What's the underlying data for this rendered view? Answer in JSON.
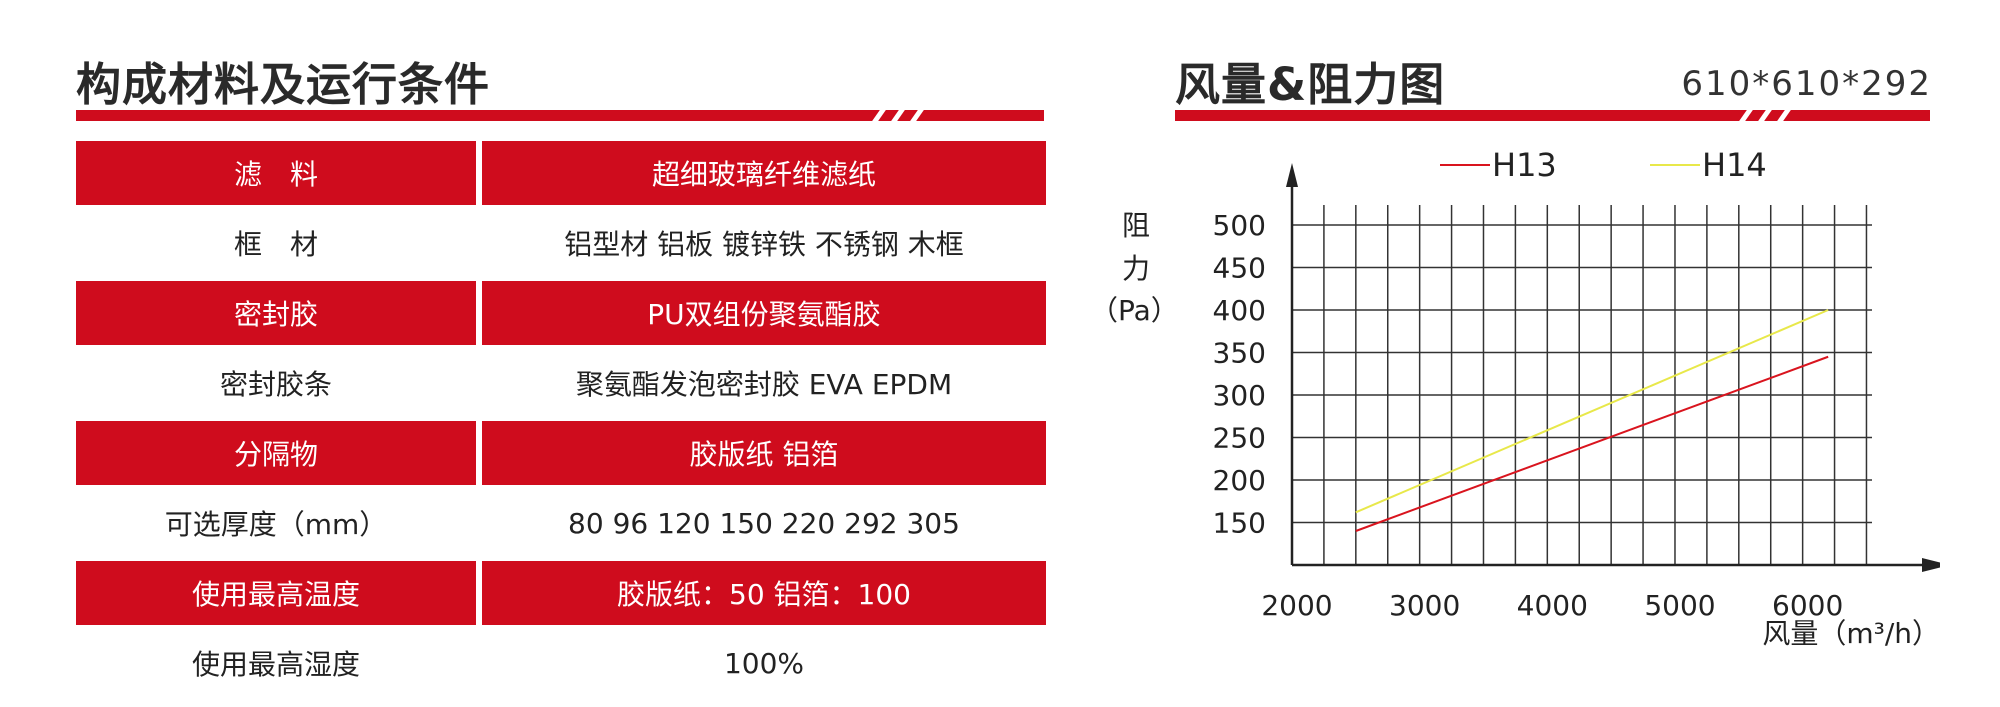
{
  "left": {
    "title": "构成材料及运行条件",
    "rows": [
      {
        "label": "滤　料",
        "value": "超细玻璃纤维滤纸",
        "style": "red"
      },
      {
        "label": "框　材",
        "value": "铝型材  铝板  镀锌铁  不锈钢  木框",
        "style": "white"
      },
      {
        "label": "密封胶",
        "value": "PU双组份聚氨酯胶",
        "style": "red"
      },
      {
        "label": "密封胶条",
        "value": "聚氨酯发泡密封胶  EVA  EPDM",
        "style": "white"
      },
      {
        "label": "分隔物",
        "value": "胶版纸  铝箔",
        "style": "red"
      },
      {
        "label": "可选厚度（mm）",
        "value": "80  96  120  150  220  292  305",
        "style": "white"
      },
      {
        "label": "使用最高温度",
        "value": "胶版纸：50   铝箔：100",
        "style": "red"
      },
      {
        "label": "使用最高湿度",
        "value": "100%",
        "style": "white"
      }
    ]
  },
  "right": {
    "title": "风量&阻力图",
    "size_label": "610*610*292"
  },
  "colors": {
    "accent": "#cf0c1d",
    "h13_line": "#d9141e",
    "h14_line": "#e8e84a",
    "grid": "#333333"
  },
  "chart_data": {
    "type": "line",
    "title": "风量&阻力图",
    "xlabel": "风量（m³/h）",
    "ylabel_lines": [
      "阻",
      "力",
      "（Pa）"
    ],
    "x_ticks": [
      2000,
      3000,
      4000,
      5000,
      6000
    ],
    "y_ticks": [
      150,
      200,
      250,
      300,
      350,
      400,
      450,
      500
    ],
    "xlim": [
      2000,
      6700
    ],
    "ylim": [
      100,
      500
    ],
    "grid": true,
    "legend_position": "top",
    "series": [
      {
        "name": "H13",
        "color": "#d9141e",
        "x": [
          2500,
          6200
        ],
        "y": [
          140,
          345
        ]
      },
      {
        "name": "H14",
        "color": "#e8e84a",
        "x": [
          2500,
          6200
        ],
        "y": [
          162,
          400
        ]
      }
    ]
  }
}
